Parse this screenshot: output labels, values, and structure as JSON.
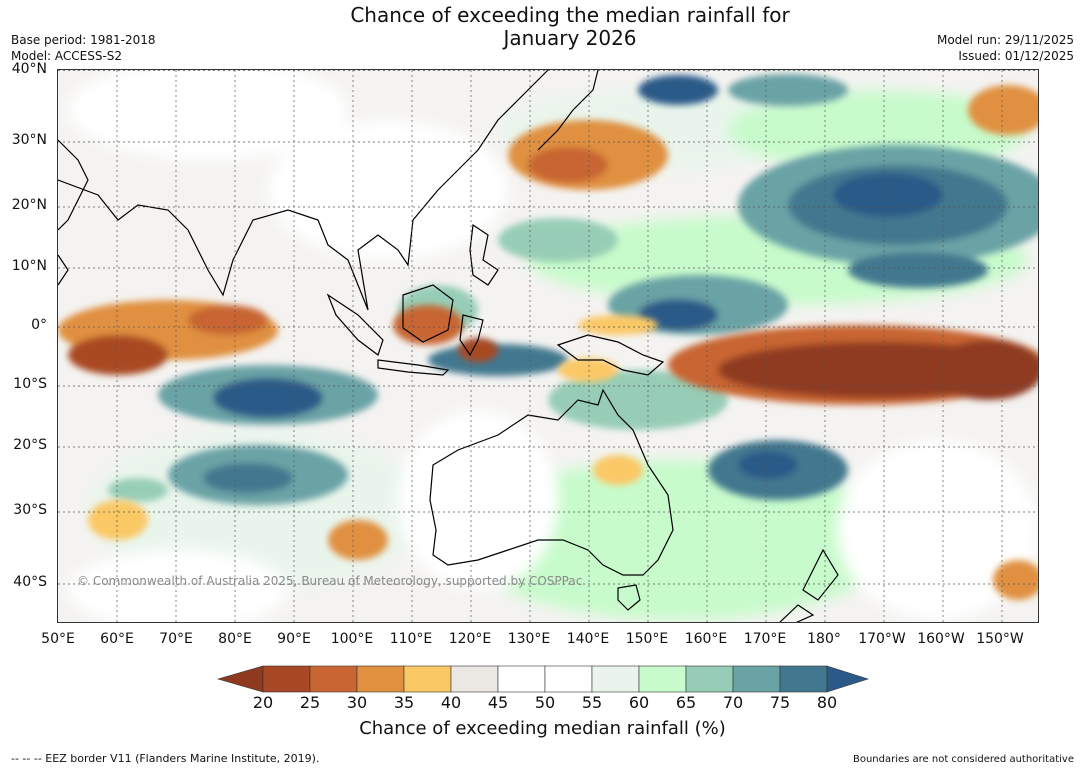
{
  "title": {
    "line1": "Chance of exceeding the median rainfall for",
    "line2": "January 2026"
  },
  "meta_left": {
    "base_period": "Base period: 1981-2018",
    "model": "Model: ACCESS-S2"
  },
  "meta_right": {
    "model_run": "Model run: 29/11/2025",
    "issued": "Issued: 01/12/2025"
  },
  "latitude_labels": [
    "40°N",
    "30°N",
    "20°N",
    "10°N",
    "0°",
    "10°S",
    "20°S",
    "30°S",
    "40°S"
  ],
  "longitude_labels": [
    "50°E",
    "60°E",
    "70°E",
    "80°E",
    "90°E",
    "100°E",
    "110°E",
    "120°E",
    "130°E",
    "140°E",
    "150°E",
    "160°E",
    "170°E",
    "180°",
    "170°W",
    "160°W",
    "150°W"
  ],
  "copyright": "© Commonwealth of Australia 2025, Bureau of Meteorology, supported by COSPPac",
  "colorbar": {
    "title": "Chance of exceeding median rainfall (%)",
    "ticks": [
      "20",
      "25",
      "30",
      "35",
      "40",
      "45",
      "50",
      "55",
      "60",
      "65",
      "70",
      "75",
      "80"
    ],
    "colors": [
      "#8f3a20",
      "#a94824",
      "#c86532",
      "#e0903f",
      "#fbc866",
      "#ebe8e3",
      "#ffffff",
      "#ffffff",
      "#e9f5ec",
      "#c7fbcb",
      "#97cdb6",
      "#6aa3a6",
      "#42788f",
      "#2b5a88"
    ]
  },
  "footer": {
    "eez": "--  --  -- EEZ border V11 (Flanders Marine Institute, 2019).",
    "disclaimer": "Boundaries are not considered authoritative"
  }
}
